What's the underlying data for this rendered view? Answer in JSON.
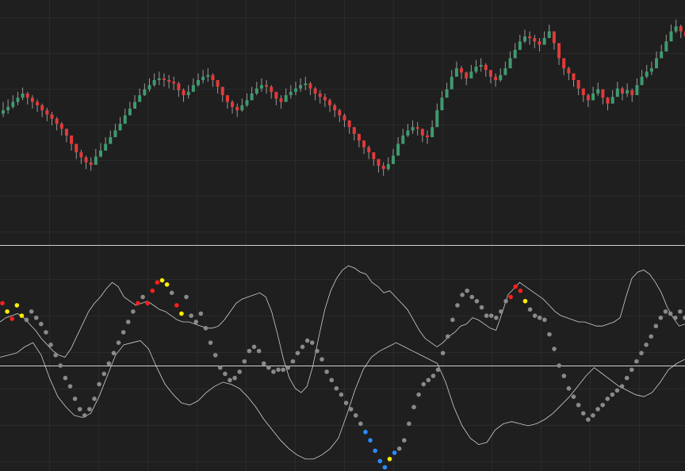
{
  "colors": {
    "background": "#1f1f1f",
    "grid": "#2a2a2a",
    "separator": "#cfcfcf",
    "bull": "#3f9a70",
    "bear": "#e23a3a",
    "wick": "#9a9a9a",
    "band": "#cfcfcf",
    "zero_line": "#d0d0d0",
    "dot_neutral": "#8a8a8a",
    "dot_red": "#ff1e1e",
    "dot_yellow": "#ffee00",
    "dot_blue": "#2b8cff"
  },
  "chart_data": [
    {
      "type": "candlestick",
      "title": "",
      "xlabel": "",
      "ylabel": "",
      "grid": true,
      "ylim": [
        0,
        270
      ],
      "closes": [
        150,
        154,
        160,
        165,
        170,
        165,
        160,
        156,
        150,
        145,
        140,
        134,
        128,
        120,
        110,
        100,
        94,
        88,
        85,
        95,
        102,
        110,
        118,
        126,
        134,
        144,
        152,
        160,
        168,
        175,
        180,
        186,
        188,
        186,
        184,
        182,
        174,
        168,
        172,
        180,
        186,
        190,
        192,
        186,
        178,
        168,
        160,
        154,
        150,
        156,
        162,
        170,
        176,
        180,
        178,
        172,
        164,
        160,
        168,
        172,
        176,
        180,
        182,
        176,
        170,
        166,
        162,
        156,
        150,
        144,
        138,
        130,
        122,
        114,
        106,
        100,
        92,
        84,
        80,
        86,
        96,
        110,
        120,
        126,
        130,
        128,
        120,
        118,
        130,
        150,
        165,
        175,
        190,
        200,
        195,
        188,
        196,
        202,
        204,
        198,
        190,
        186,
        192,
        200,
        212,
        222,
        232,
        238,
        236,
        232,
        228,
        236,
        244,
        230,
        212,
        200,
        194,
        186,
        176,
        168,
        162,
        170,
        175,
        165,
        158,
        166,
        176,
        170,
        174,
        168,
        180,
        190,
        196,
        200,
        212,
        220,
        232,
        244,
        250,
        244,
        238
      ],
      "highs": [
        160,
        163,
        168,
        172,
        177,
        172,
        168,
        163,
        158,
        153,
        148,
        142,
        136,
        128,
        118,
        110,
        103,
        96,
        94,
        104,
        111,
        118,
        126,
        134,
        142,
        152,
        160,
        168,
        176,
        182,
        188,
        194,
        196,
        194,
        192,
        190,
        184,
        176,
        180,
        188,
        194,
        198,
        200,
        194,
        186,
        176,
        168,
        162,
        158,
        164,
        170,
        178,
        184,
        188,
        186,
        180,
        172,
        168,
        176,
        180,
        184,
        188,
        190,
        184,
        178,
        174,
        170,
        164,
        158,
        152,
        146,
        138,
        130,
        122,
        114,
        108,
        100,
        92,
        88,
        94,
        104,
        118,
        128,
        134,
        138,
        136,
        128,
        126,
        138,
        158,
        173,
        183,
        198,
        208,
        203,
        196,
        204,
        210,
        212,
        206,
        198,
        194,
        200,
        208,
        220,
        230,
        240,
        246,
        244,
        240,
        236,
        244,
        252,
        238,
        220,
        208,
        202,
        194,
        184,
        176,
        170,
        178,
        183,
        173,
        166,
        174,
        184,
        178,
        182,
        176,
        188,
        198,
        204,
        208,
        220,
        228,
        240,
        252,
        258,
        252,
        246
      ],
      "lows": [
        142,
        146,
        152,
        156,
        162,
        157,
        152,
        148,
        142,
        137,
        132,
        126,
        120,
        112,
        102,
        92,
        86,
        80,
        78,
        87,
        94,
        102,
        110,
        118,
        126,
        136,
        144,
        152,
        160,
        167,
        172,
        178,
        180,
        178,
        176,
        174,
        166,
        160,
        164,
        172,
        178,
        182,
        184,
        178,
        170,
        160,
        152,
        146,
        142,
        148,
        154,
        162,
        168,
        172,
        170,
        164,
        156,
        152,
        160,
        164,
        168,
        172,
        174,
        168,
        162,
        158,
        154,
        148,
        142,
        136,
        130,
        122,
        114,
        106,
        98,
        92,
        84,
        76,
        72,
        78,
        88,
        102,
        112,
        118,
        122,
        120,
        112,
        110,
        122,
        142,
        157,
        167,
        182,
        192,
        187,
        180,
        188,
        194,
        196,
        190,
        182,
        178,
        184,
        192,
        204,
        214,
        224,
        230,
        228,
        224,
        220,
        228,
        236,
        222,
        204,
        192,
        186,
        178,
        168,
        160,
        154,
        162,
        167,
        157,
        150,
        158,
        168,
        162,
        166,
        160,
        172,
        182,
        188,
        192,
        204,
        212,
        224,
        236,
        242,
        236,
        230
      ]
    },
    {
      "type": "scatter",
      "title": "",
      "xlabel": "",
      "ylabel": "",
      "grid": true,
      "ylim": [
        -100,
        100
      ],
      "zero": 0,
      "points": [
        60,
        52,
        45,
        58,
        48,
        44,
        52,
        46,
        40,
        32,
        20,
        10,
        0,
        -12,
        -20,
        -32,
        -42,
        -48,
        -42,
        -32,
        -18,
        -8,
        2,
        12,
        22,
        32,
        42,
        52,
        60,
        66,
        60,
        72,
        80,
        82,
        78,
        70,
        58,
        50,
        66,
        48,
        42,
        50,
        36,
        22,
        10,
        -2,
        -8,
        -14,
        -12,
        -6,
        4,
        14,
        18,
        14,
        2,
        -2,
        -6,
        -4,
        -4,
        -2,
        4,
        12,
        18,
        24,
        22,
        14,
        6,
        -6,
        -14,
        -22,
        -28,
        -36,
        -42,
        -48,
        -56,
        -64,
        -72,
        -82,
        -92,
        -98,
        -90,
        -84,
        -80,
        -72,
        -56,
        -40,
        -28,
        -18,
        -14,
        -10,
        -4,
        12,
        28,
        44,
        58,
        68,
        72,
        66,
        62,
        56,
        48,
        48,
        46,
        52,
        62,
        66,
        76,
        72,
        62,
        54,
        48,
        46,
        44,
        30,
        16,
        0,
        -10,
        -22,
        -30,
        -38,
        -46,
        -52,
        -48,
        -42,
        -38,
        -32,
        -28,
        -24,
        -20,
        -12,
        -4,
        4,
        12,
        20,
        28,
        38,
        46,
        52,
        50,
        46,
        52,
        46
      ],
      "point_colors": [
        "red",
        "yellow",
        "red",
        "yellow",
        "yellow",
        "neutral",
        "neutral",
        "neutral",
        "neutral",
        "neutral",
        "neutral",
        "neutral",
        "neutral",
        "neutral",
        "neutral",
        "neutral",
        "neutral",
        "neutral",
        "neutral",
        "neutral",
        "neutral",
        "neutral",
        "neutral",
        "neutral",
        "neutral",
        "neutral",
        "neutral",
        "neutral",
        "red",
        "neutral",
        "red",
        "red",
        "red",
        "yellow",
        "yellow",
        "neutral",
        "red",
        "yellow",
        "neutral",
        "neutral",
        "neutral",
        "neutral",
        "neutral",
        "neutral",
        "neutral",
        "neutral",
        "neutral",
        "neutral",
        "neutral",
        "neutral",
        "neutral",
        "neutral",
        "neutral",
        "neutral",
        "neutral",
        "neutral",
        "neutral",
        "neutral",
        "neutral",
        "neutral",
        "neutral",
        "neutral",
        "neutral",
        "neutral",
        "neutral",
        "neutral",
        "neutral",
        "neutral",
        "neutral",
        "neutral",
        "neutral",
        "neutral",
        "neutral",
        "neutral",
        "neutral",
        "blue",
        "blue",
        "blue",
        "blue",
        "blue",
        "yellow",
        "blue",
        "neutral",
        "neutral",
        "neutral",
        "neutral",
        "neutral",
        "neutral",
        "neutral",
        "neutral",
        "neutral",
        "neutral",
        "neutral",
        "neutral",
        "neutral",
        "neutral",
        "neutral",
        "neutral",
        "neutral",
        "neutral",
        "neutral",
        "neutral",
        "neutral",
        "neutral",
        "neutral",
        "red",
        "red",
        "red",
        "yellow",
        "neutral",
        "neutral",
        "neutral",
        "neutral",
        "neutral",
        "neutral",
        "neutral",
        "neutral",
        "neutral",
        "neutral",
        "neutral",
        "neutral",
        "neutral",
        "neutral",
        "neutral",
        "neutral",
        "neutral",
        "neutral",
        "neutral",
        "neutral",
        "neutral",
        "neutral",
        "neutral",
        "neutral",
        "neutral",
        "neutral",
        "neutral",
        "neutral",
        "neutral",
        "neutral"
      ],
      "band_upper": [
        42,
        46,
        48,
        50,
        46,
        40,
        34,
        26,
        20,
        14,
        10,
        8,
        16,
        28,
        40,
        52,
        60,
        66,
        74,
        80,
        76,
        66,
        62,
        58,
        60,
        62,
        58,
        54,
        52,
        48,
        44,
        42,
        42,
        40,
        38,
        36,
        36,
        38,
        44,
        52,
        60,
        64,
        66,
        68,
        70,
        66,
        52,
        30,
        6,
        -12,
        -22,
        -26,
        -20,
        0,
        28,
        54,
        72,
        84,
        92,
        96,
        94,
        90,
        88,
        80,
        76,
        70,
        72,
        66,
        60,
        54,
        44,
        34,
        26,
        22,
        18,
        22,
        28,
        32,
        38,
        40,
        46,
        44,
        40,
        36,
        34,
        50,
        68,
        74,
        80,
        76,
        72,
        68,
        64,
        58,
        52,
        48,
        46,
        44,
        42,
        42,
        40,
        38,
        38,
        40,
        42,
        46,
        66,
        84,
        90,
        92,
        88,
        80,
        70,
        56,
        46,
        38,
        40
      ],
      "band_lower": [
        8,
        10,
        12,
        18,
        22,
        10,
        -12,
        -30,
        -40,
        -48,
        -50,
        -46,
        -30,
        -10,
        10,
        20,
        22,
        24,
        16,
        -2,
        -18,
        -28,
        -36,
        -38,
        -34,
        -26,
        -20,
        -16,
        -18,
        -22,
        -30,
        -40,
        -52,
        -62,
        -72,
        -80,
        -86,
        -90,
        -90,
        -86,
        -80,
        -70,
        -48,
        -24,
        -4,
        8,
        14,
        18,
        22,
        18,
        14,
        10,
        6,
        2,
        -16,
        -40,
        -58,
        -70,
        -76,
        -74,
        -62,
        -56,
        -54,
        -56,
        -58,
        -56,
        -52,
        -46,
        -38,
        -30,
        -20,
        -10,
        -2,
        -8,
        -14,
        -20,
        -24,
        -28,
        -30,
        -26,
        -16,
        -4,
        2,
        6
      ]
    }
  ]
}
